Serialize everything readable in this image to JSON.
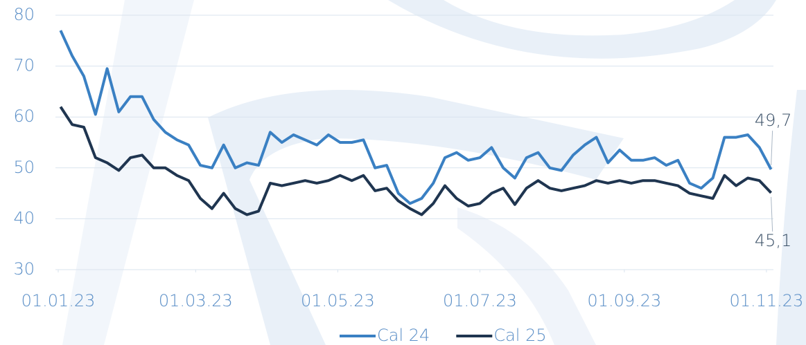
{
  "chart_data": {
    "type": "line",
    "x": [
      "2023-01-02",
      "2023-01-07",
      "2023-01-12",
      "2023-01-17",
      "2023-01-22",
      "2023-01-27",
      "2023-02-01",
      "2023-02-06",
      "2023-02-11",
      "2023-02-16",
      "2023-02-21",
      "2023-02-26",
      "2023-03-03",
      "2023-03-08",
      "2023-03-13",
      "2023-03-18",
      "2023-03-23",
      "2023-03-28",
      "2023-04-02",
      "2023-04-07",
      "2023-04-12",
      "2023-04-17",
      "2023-04-22",
      "2023-04-27",
      "2023-05-02",
      "2023-05-07",
      "2023-05-12",
      "2023-05-17",
      "2023-05-22",
      "2023-05-27",
      "2023-06-01",
      "2023-06-06",
      "2023-06-11",
      "2023-06-16",
      "2023-06-21",
      "2023-06-26",
      "2023-07-01",
      "2023-07-06",
      "2023-07-11",
      "2023-07-16",
      "2023-07-21",
      "2023-07-26",
      "2023-07-31",
      "2023-08-05",
      "2023-08-10",
      "2023-08-15",
      "2023-08-20",
      "2023-08-25",
      "2023-08-30",
      "2023-09-04",
      "2023-09-09",
      "2023-09-14",
      "2023-09-19",
      "2023-09-24",
      "2023-09-29",
      "2023-10-04",
      "2023-10-09",
      "2023-10-14",
      "2023-10-19",
      "2023-10-24",
      "2023-10-29",
      "2023-11-03"
    ],
    "series": [
      {
        "name": "Cal 24",
        "color": "#3a80c3",
        "values": [
          77,
          72,
          68,
          60.5,
          69.5,
          61,
          64,
          64,
          59.5,
          57,
          55.5,
          54.5,
          50.5,
          50,
          54.5,
          50,
          51,
          50.5,
          57,
          55,
          56.5,
          55.5,
          54.5,
          56.5,
          55,
          55,
          55.5,
          50,
          50.5,
          45,
          43,
          44,
          47,
          52,
          53,
          51.5,
          52,
          54,
          50,
          48,
          52,
          53,
          50,
          49.5,
          52.5,
          54.5,
          56,
          51,
          53.5,
          51.5,
          51.5,
          52,
          50.5,
          51.5,
          47,
          46,
          48,
          56,
          56,
          56.5,
          54,
          49.7
        ],
        "value_labels": [
          null,
          null,
          null,
          null,
          null,
          null,
          null,
          null,
          null,
          null,
          null,
          null,
          null,
          null,
          null,
          null,
          null,
          null,
          null,
          null,
          null,
          null,
          null,
          null,
          null,
          null,
          null,
          null,
          null,
          null,
          null,
          null,
          null,
          null,
          null,
          null,
          null,
          null,
          null,
          null,
          null,
          null,
          null,
          null,
          null,
          null,
          null,
          null,
          null,
          null,
          null,
          null,
          null,
          null,
          null,
          null,
          null,
          null,
          null,
          null,
          null,
          "49,7"
        ]
      },
      {
        "name": "Cal 25",
        "color": "#1f3550",
        "values": [
          62,
          58.5,
          58,
          52,
          51,
          49.5,
          52,
          52.5,
          50,
          50,
          48.5,
          47.5,
          44,
          42,
          45,
          42,
          40.8,
          41.5,
          47,
          46.5,
          47,
          47.5,
          47,
          47.5,
          48.5,
          47.5,
          48.5,
          45.5,
          46,
          43.5,
          42,
          40.8,
          43,
          46.5,
          44,
          42.5,
          43,
          45,
          46,
          42.8,
          46,
          47.5,
          46,
          45.5,
          46,
          46.5,
          47.5,
          47,
          47.5,
          47,
          47.5,
          47.5,
          47,
          46.5,
          45,
          44.5,
          44,
          48.5,
          46.5,
          48,
          47.5,
          45.1
        ],
        "value_labels": [
          null,
          null,
          null,
          null,
          null,
          null,
          null,
          null,
          null,
          null,
          null,
          null,
          null,
          null,
          null,
          null,
          null,
          null,
          null,
          null,
          null,
          null,
          null,
          null,
          null,
          null,
          null,
          null,
          null,
          null,
          null,
          null,
          null,
          null,
          null,
          null,
          null,
          null,
          null,
          null,
          null,
          null,
          null,
          null,
          null,
          null,
          null,
          null,
          null,
          null,
          null,
          null,
          null,
          null,
          null,
          null,
          null,
          null,
          null,
          null,
          null,
          "45,1"
        ]
      }
    ],
    "xlim": [
      "2023-01-01",
      "2023-11-04"
    ],
    "xticks": [
      {
        "value": "2023-01-01",
        "label": "01.01.23"
      },
      {
        "value": "2023-03-01",
        "label": "01.03.23"
      },
      {
        "value": "2023-05-01",
        "label": "01.05.23"
      },
      {
        "value": "2023-07-01",
        "label": "01.07.23"
      },
      {
        "value": "2023-09-01",
        "label": "01.09.23"
      },
      {
        "value": "2023-11-01",
        "label": "01.11.23"
      }
    ],
    "ylim": [
      30,
      80
    ],
    "yticks": [
      30,
      40,
      50,
      60,
      70,
      80
    ],
    "grid": true,
    "legend": "bottom"
  }
}
